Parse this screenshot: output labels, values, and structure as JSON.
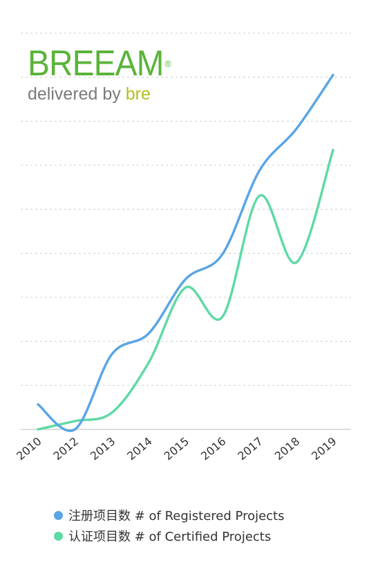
{
  "logo": {
    "brand": "BREEAM",
    "registered_mark": "®",
    "tagline": "delivered by",
    "tagline_brand": "bre",
    "brand_color": "#5bb33a",
    "tagline_brand_color": "#b5bd1e"
  },
  "chart_data": {
    "type": "line",
    "title": "",
    "xlabel": "",
    "ylabel": "",
    "categories": [
      "2010",
      "2012",
      "2013",
      "2014",
      "2015",
      "2016",
      "2017",
      "2018",
      "2019"
    ],
    "y_axis_labels_shown": false,
    "ylim": [
      0,
      9.5
    ],
    "grid": "horizontal dashed",
    "legend_position": "bottom",
    "series": [
      {
        "name": "注册项目数 # of Registered Projects",
        "color": "#5aa5e6",
        "values": [
          0.6,
          0.0,
          1.8,
          2.3,
          3.6,
          4.2,
          6.2,
          7.2,
          8.5
        ]
      },
      {
        "name": "认证项目数 # of Certified Projects",
        "color": "#5fd9a5",
        "values": [
          0.0,
          0.2,
          0.4,
          1.6,
          3.4,
          2.7,
          5.6,
          4.0,
          6.7
        ]
      }
    ]
  }
}
